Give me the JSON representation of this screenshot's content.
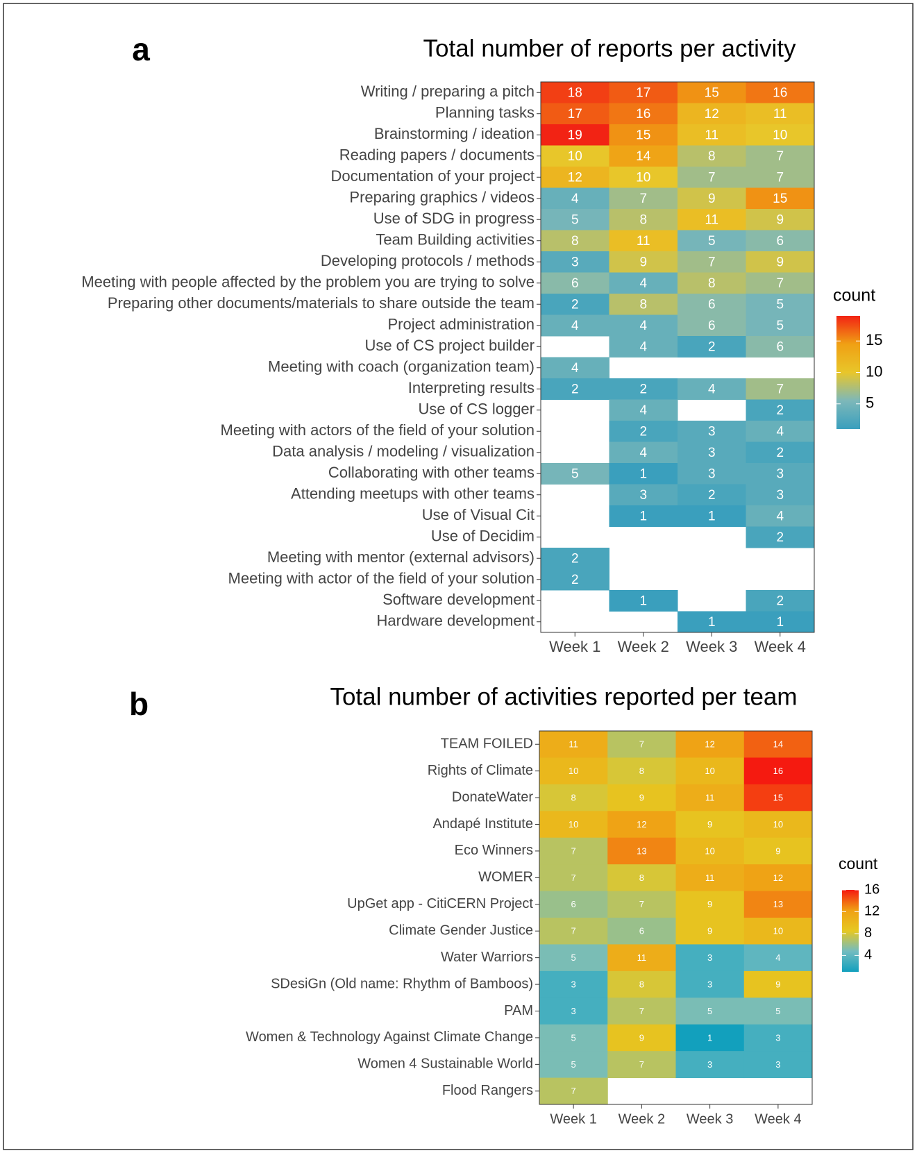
{
  "chart_data": [
    {
      "type": "heatmap",
      "panel": "a",
      "title": "Total number of reports per activity",
      "categories": [
        "Week 1",
        "Week 2",
        "Week 3",
        "Week 4"
      ],
      "rows": [
        "Writing  / preparing a pitch",
        "Planning tasks",
        "Brainstorming / ideation",
        "Reading papers / documents",
        "Documentation of your project",
        "Preparing graphics / videos",
        "Use of SDG in progress",
        "Team Building activities",
        "Developing protocols / methods",
        "Meeting with people affected by the problem you are trying to solve",
        "Preparing other documents/materials to share outside the team",
        "Project administration",
        "Use of CS project builder",
        "Meeting with coach (organization team)",
        "Interpreting results",
        "Use of CS logger",
        "Meeting with actors of the field of your solution",
        "Data analysis / modeling / visualization",
        "Collaborating with other teams",
        "Attending meetups with other teams",
        "Use of Visual Cit",
        "Use of Decidim",
        "Meeting with mentor (external advisors)",
        "Meeting with actor of the field of your solution",
        "Software development",
        "Hardware development"
      ],
      "values": [
        [
          18,
          17,
          15,
          16
        ],
        [
          17,
          16,
          12,
          11
        ],
        [
          19,
          15,
          11,
          10
        ],
        [
          10,
          14,
          8,
          7
        ],
        [
          12,
          10,
          7,
          7
        ],
        [
          4,
          7,
          9,
          15
        ],
        [
          5,
          8,
          11,
          9
        ],
        [
          8,
          11,
          5,
          6
        ],
        [
          3,
          9,
          7,
          9
        ],
        [
          6,
          4,
          8,
          7
        ],
        [
          2,
          8,
          6,
          5
        ],
        [
          4,
          4,
          6,
          5
        ],
        [
          null,
          4,
          2,
          6
        ],
        [
          4,
          null,
          null,
          null
        ],
        [
          2,
          2,
          4,
          7
        ],
        [
          null,
          4,
          null,
          2
        ],
        [
          null,
          2,
          3,
          4
        ],
        [
          null,
          4,
          3,
          2
        ],
        [
          5,
          1,
          3,
          3
        ],
        [
          null,
          3,
          2,
          3
        ],
        [
          null,
          1,
          1,
          4
        ],
        [
          null,
          null,
          null,
          2
        ],
        [
          2,
          null,
          null,
          null
        ],
        [
          2,
          null,
          null,
          null
        ],
        [
          null,
          1,
          null,
          2
        ],
        [
          null,
          null,
          1,
          1
        ]
      ],
      "legend_title": "count",
      "clim": [
        1,
        19
      ],
      "cticks": [
        5,
        10,
        15
      ],
      "color_scale": [
        "#3a9fbd",
        "#7db8b9",
        "#e8c62a",
        "#f0a014",
        "#f22314"
      ]
    },
    {
      "type": "heatmap",
      "panel": "b",
      "title": "Total number of activities reported per team",
      "categories": [
        "Week 1",
        "Week 2",
        "Week 3",
        "Week 4"
      ],
      "rows": [
        "TEAM FOILED",
        "Rights of Climate",
        "DonateWater",
        "Andapé Institute",
        "Eco Winners",
        "WOMER",
        "UpGet app - CitiCERN Project",
        "Climate Gender Justice",
        "Water Warriors",
        "SDesiGn (Old name: Rhythm of Bamboos)",
        "PAM",
        "Women & Technology Against Climate Change",
        "Women 4 Sustainable World",
        "Flood Rangers"
      ],
      "values": [
        [
          11,
          7,
          12,
          14
        ],
        [
          10,
          8,
          10,
          16
        ],
        [
          8,
          9,
          11,
          15
        ],
        [
          10,
          12,
          9,
          10
        ],
        [
          7,
          13,
          10,
          9
        ],
        [
          7,
          8,
          11,
          12
        ],
        [
          6,
          7,
          9,
          13
        ],
        [
          7,
          6,
          9,
          10
        ],
        [
          5,
          11,
          3,
          4
        ],
        [
          3,
          8,
          3,
          9
        ],
        [
          3,
          7,
          5,
          5
        ],
        [
          5,
          9,
          1,
          3
        ],
        [
          5,
          7,
          3,
          3
        ],
        [
          7,
          null,
          null,
          null
        ]
      ],
      "legend_title": "count",
      "clim": [
        1,
        16
      ],
      "cticks": [
        4,
        8,
        12,
        16
      ],
      "color_scale": [
        "#12a0bd",
        "#72bcc0",
        "#e6c822",
        "#f0a014",
        "#f51a10"
      ]
    }
  ]
}
